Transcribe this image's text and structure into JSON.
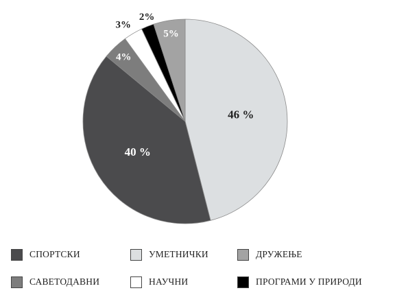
{
  "chart_data": {
    "type": "pie",
    "title": "",
    "slices": [
      {
        "label": "УМЕТНИЧКИ",
        "value": 46,
        "display": "46 %",
        "color": "#dcdfe1",
        "text_color": "#222222"
      },
      {
        "label": "СПОРТСКИ",
        "value": 40,
        "display": "40 %",
        "color": "#4b4b4d",
        "text_color": "#ffffff"
      },
      {
        "label": "САВЕТОДАВНИ",
        "value": 4,
        "display": "4%",
        "color": "#7d7d7d",
        "text_color": "#ffffff"
      },
      {
        "label": "НАУЧНИ",
        "value": 3,
        "display": "3%",
        "color": "#ffffff",
        "text_color": "#222222"
      },
      {
        "label": "ПРОГРАМИ У ПРИРОДИ",
        "value": 2,
        "display": "2%",
        "color": "#000000",
        "text_color": "#222222"
      },
      {
        "label": "ДРУЖЕЊЕ",
        "value": 5,
        "display": "5%",
        "color": "#a3a3a3",
        "text_color": "#ffffff"
      }
    ],
    "legend_placement": "bottom"
  },
  "legend": [
    {
      "label": "СПОРТСКИ",
      "color": "#4b4b4d"
    },
    {
      "label": "УМЕТНИЧКИ",
      "color": "#dcdfe1"
    },
    {
      "label": "ДРУЖЕЊЕ",
      "color": "#a3a3a3"
    },
    {
      "label": "САВЕТОДАВНИ",
      "color": "#7d7d7d"
    },
    {
      "label": "НАУЧНИ",
      "color": "#ffffff"
    },
    {
      "label": "ПРОГРАМИ У ПРИРОДИ",
      "color": "#000000"
    }
  ]
}
